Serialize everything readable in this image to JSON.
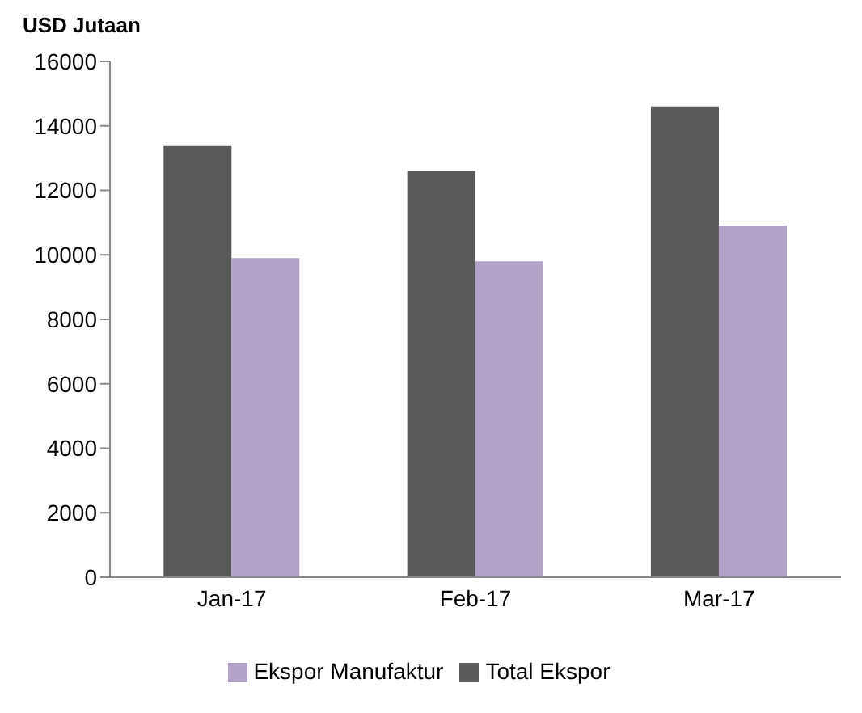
{
  "chart_data": {
    "type": "bar",
    "ylabel": "USD Jutaan",
    "categories": [
      "Jan-17",
      "Feb-17",
      "Mar-17"
    ],
    "series": [
      {
        "name": "Total Ekspor",
        "color": "#595959",
        "values": [
          13400,
          12600,
          14600
        ]
      },
      {
        "name": "Ekspor Manufaktur",
        "color": "#b3a2c7",
        "values": [
          9900,
          9800,
          10900
        ]
      }
    ],
    "ylim": [
      0,
      16000
    ],
    "yticks": [
      0,
      2000,
      4000,
      6000,
      8000,
      10000,
      12000,
      14000,
      16000
    ],
    "grid": false,
    "legend": "bottom"
  }
}
